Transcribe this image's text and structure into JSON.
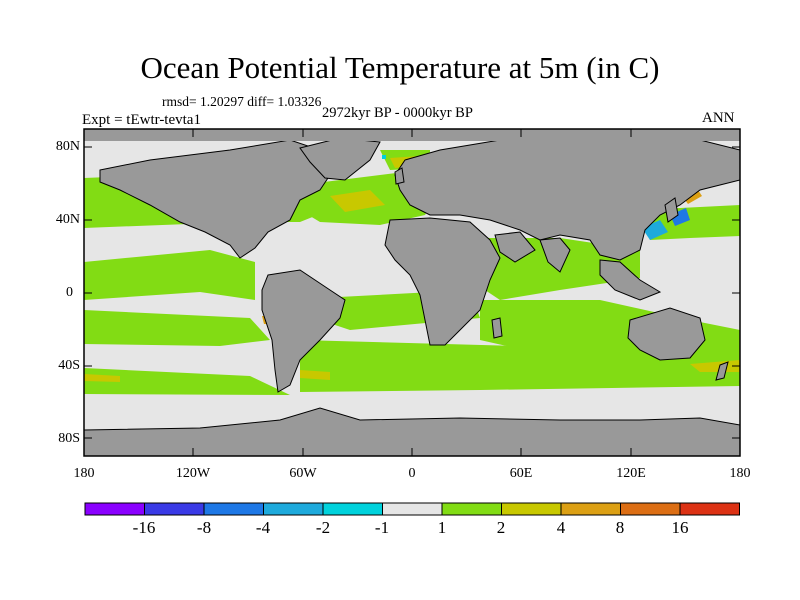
{
  "header": {
    "title": "Ocean Potential Temperature at 5m (in C)",
    "stats": "rmsd= 1.20297 diff= 1.03326",
    "experiment": "Expt = tEwtr-tevta1",
    "period": "2972kyr BP - 0000kyr BP",
    "season": "ANN"
  },
  "map": {
    "projection": "cylindrical-equidistant",
    "lon_range": [
      -180,
      180
    ],
    "lat_range": [
      -90,
      90
    ],
    "land_color": "#999999",
    "lat_ticks": [
      "80N",
      "40N",
      "0",
      "40S",
      "80S"
    ],
    "lon_ticks": [
      "180",
      "120W",
      "60W",
      "0",
      "60E",
      "120E",
      "180"
    ]
  },
  "colorbar": {
    "boxes": [
      "#8a00ff",
      "#3a3ae6",
      "#1e78e6",
      "#1eaadc",
      "#00d2dc",
      "#e6e6e6",
      "#82dc14",
      "#c8c800",
      "#dca014",
      "#dc6e14",
      "#dc3214"
    ],
    "labels": [
      "-16",
      "-8",
      "-4",
      "-2",
      "-1",
      "1",
      "2",
      "4",
      "8",
      "16"
    ]
  }
}
